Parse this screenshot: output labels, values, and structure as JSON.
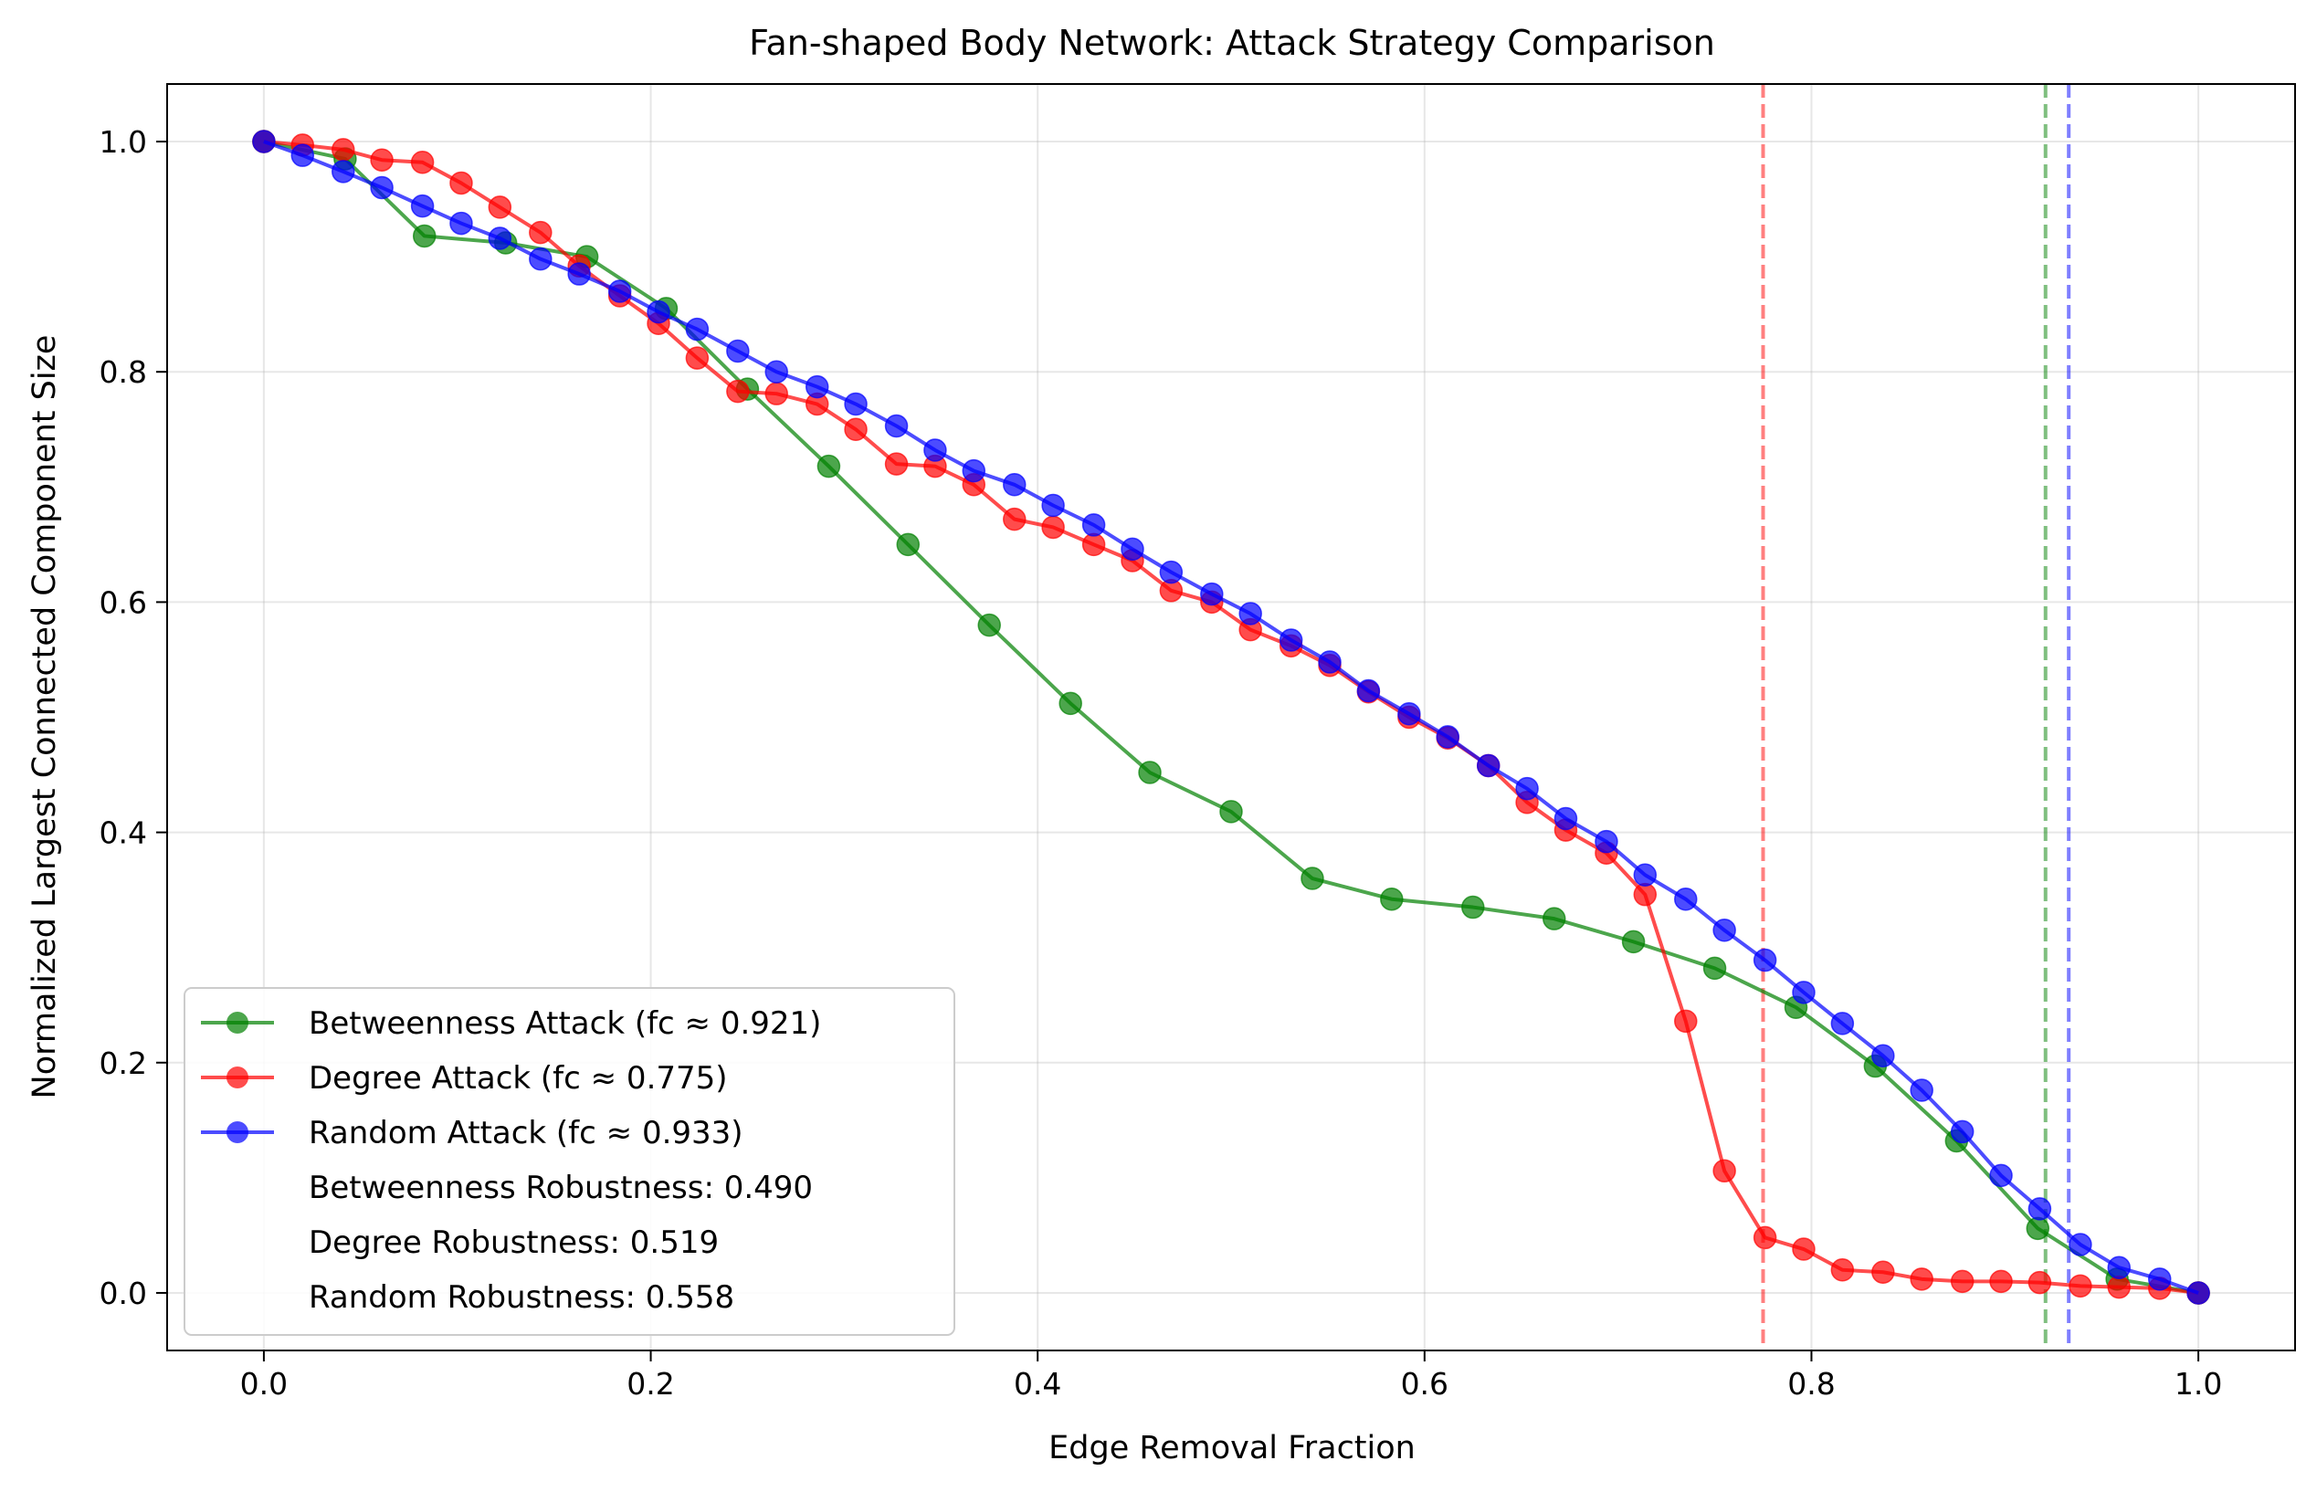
{
  "chart_data": {
    "type": "line",
    "title": "Fan-shaped Body Network: Attack Strategy Comparison",
    "xlabel": "Edge Removal Fraction",
    "ylabel": "Normalized Largest Connected Component Size",
    "xlim": [
      -0.05,
      1.05
    ],
    "ylim": [
      -0.05,
      1.05
    ],
    "xticks": [
      0.0,
      0.2,
      0.4,
      0.6,
      0.8,
      1.0
    ],
    "xtick_labels": [
      "0.0",
      "0.2",
      "0.4",
      "0.6",
      "0.8",
      "1.0"
    ],
    "yticks": [
      0.0,
      0.2,
      0.4,
      0.6,
      0.8,
      1.0
    ],
    "ytick_labels": [
      "0.0",
      "0.2",
      "0.4",
      "0.6",
      "0.8",
      "1.0"
    ],
    "grid": true,
    "legend_position": "lower-left",
    "series": [
      {
        "name": "Betweenness Attack (fc ≈ 0.921)",
        "color": "#008000",
        "x": [
          0.0,
          0.042,
          0.083,
          0.125,
          0.167,
          0.208,
          0.25,
          0.292,
          0.333,
          0.375,
          0.417,
          0.458,
          0.5,
          0.542,
          0.583,
          0.625,
          0.667,
          0.708,
          0.75,
          0.792,
          0.833,
          0.875,
          0.917,
          0.958,
          1.0
        ],
        "y": [
          1.0,
          0.985,
          0.918,
          0.912,
          0.9,
          0.855,
          0.785,
          0.718,
          0.65,
          0.58,
          0.512,
          0.452,
          0.418,
          0.36,
          0.342,
          0.335,
          0.325,
          0.305,
          0.282,
          0.248,
          0.197,
          0.132,
          0.056,
          0.012,
          0.0
        ]
      },
      {
        "name": "Degree Attack (fc ≈ 0.775)",
        "color": "#ff0000",
        "x": [
          0.0,
          0.02,
          0.041,
          0.061,
          0.082,
          0.102,
          0.122,
          0.143,
          0.163,
          0.184,
          0.204,
          0.224,
          0.245,
          0.265,
          0.286,
          0.306,
          0.327,
          0.347,
          0.367,
          0.388,
          0.408,
          0.429,
          0.449,
          0.469,
          0.49,
          0.51,
          0.531,
          0.551,
          0.571,
          0.592,
          0.612,
          0.633,
          0.653,
          0.673,
          0.694,
          0.714,
          0.735,
          0.755,
          0.776,
          0.796,
          0.816,
          0.837,
          0.857,
          0.878,
          0.898,
          0.918,
          0.939,
          0.959,
          0.98,
          1.0
        ],
        "y": [
          1.0,
          0.997,
          0.993,
          0.984,
          0.982,
          0.964,
          0.943,
          0.921,
          0.892,
          0.866,
          0.842,
          0.812,
          0.783,
          0.781,
          0.772,
          0.75,
          0.72,
          0.718,
          0.702,
          0.672,
          0.665,
          0.65,
          0.636,
          0.61,
          0.6,
          0.576,
          0.562,
          0.545,
          0.522,
          0.5,
          0.482,
          0.458,
          0.426,
          0.402,
          0.382,
          0.346,
          0.236,
          0.106,
          0.048,
          0.038,
          0.02,
          0.018,
          0.012,
          0.01,
          0.01,
          0.009,
          0.006,
          0.005,
          0.004,
          0.0
        ]
      },
      {
        "name": "Random Attack (fc ≈ 0.933)",
        "color": "#0000ff",
        "x": [
          0.0,
          0.02,
          0.041,
          0.061,
          0.082,
          0.102,
          0.122,
          0.143,
          0.163,
          0.184,
          0.204,
          0.224,
          0.245,
          0.265,
          0.286,
          0.306,
          0.327,
          0.347,
          0.367,
          0.388,
          0.408,
          0.429,
          0.449,
          0.469,
          0.49,
          0.51,
          0.531,
          0.551,
          0.571,
          0.592,
          0.612,
          0.633,
          0.653,
          0.673,
          0.694,
          0.714,
          0.735,
          0.755,
          0.776,
          0.796,
          0.816,
          0.837,
          0.857,
          0.878,
          0.898,
          0.918,
          0.939,
          0.959,
          0.98,
          1.0
        ],
        "y": [
          1.0,
          0.988,
          0.974,
          0.96,
          0.944,
          0.929,
          0.916,
          0.898,
          0.885,
          0.87,
          0.852,
          0.837,
          0.818,
          0.8,
          0.787,
          0.772,
          0.753,
          0.732,
          0.714,
          0.702,
          0.684,
          0.667,
          0.646,
          0.626,
          0.607,
          0.59,
          0.567,
          0.548,
          0.523,
          0.503,
          0.483,
          0.458,
          0.438,
          0.412,
          0.392,
          0.363,
          0.342,
          0.315,
          0.289,
          0.261,
          0.234,
          0.206,
          0.176,
          0.14,
          0.102,
          0.073,
          0.042,
          0.022,
          0.012,
          0.0
        ]
      }
    ],
    "thresholds": [
      {
        "x": 0.775,
        "color": "#ff0000"
      },
      {
        "x": 0.921,
        "color": "#008000"
      },
      {
        "x": 0.933,
        "color": "#0000ff"
      }
    ],
    "legend_extra": [
      "Betweenness Robustness: 0.490",
      "Degree Robustness: 0.519",
      "Random Robustness: 0.558"
    ]
  }
}
